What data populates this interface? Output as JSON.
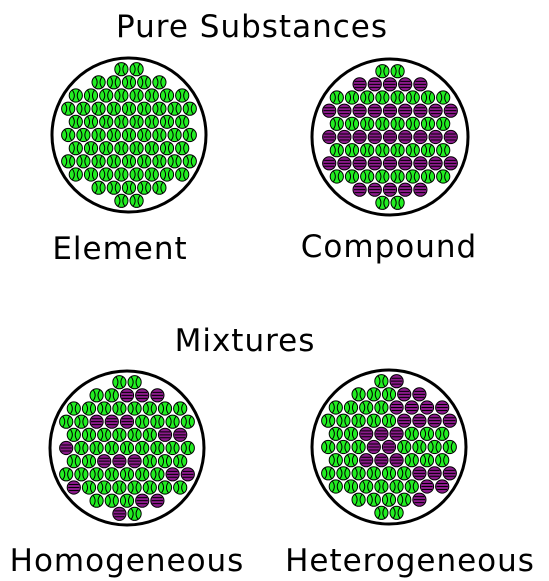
{
  "sections": {
    "pure_substances": {
      "title": "Pure Substances"
    },
    "mixtures": {
      "title": "Mixtures"
    }
  },
  "samples": {
    "element": {
      "caption": "Element"
    },
    "compound": {
      "caption": "Compound"
    },
    "homogeneous": {
      "caption": "Homogeneous"
    },
    "heterogeneous": {
      "caption": "Heterogeneous"
    }
  },
  "colors": {
    "green_particle": "#22ee22",
    "purple_particle": "#8b1a8b",
    "outline": "#000000",
    "background": "#ffffff"
  }
}
